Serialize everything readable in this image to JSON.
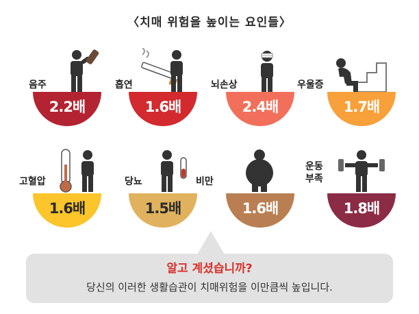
{
  "title": "〈치매 위험을 높이는 요인들〉",
  "factors": [
    {
      "label": "음주",
      "value": "2.2배",
      "color": "#b42331",
      "text_color": "#ffffff",
      "icon": "drinking-person-icon"
    },
    {
      "label": "흡연",
      "value": "1.6배",
      "color": "#d22a2e",
      "text_color": "#ffffff",
      "icon": "smoking-person-icon"
    },
    {
      "label": "뇌손상",
      "value": "2.4배",
      "color": "#f2705b",
      "text_color": "#ffffff",
      "icon": "head-injury-person-icon"
    },
    {
      "label": "우울증",
      "value": "1.7배",
      "color": "#f8a03a",
      "text_color": "#ffffff",
      "icon": "depressed-person-icon"
    },
    {
      "label": "고혈압",
      "value": "1.6배",
      "color": "#fbc52b",
      "text_color": "#2b2b2b",
      "icon": "thermometer-person-icon"
    },
    {
      "label": "당뇨",
      "value": "1.5배",
      "color": "#e0b25e",
      "text_color": "#2b2b2b",
      "icon": "test-tube-person-icon"
    },
    {
      "label": "비만",
      "value": "1.6배",
      "color": "#b97f52",
      "text_color": "#ffffff",
      "icon": "obese-person-icon"
    },
    {
      "label": "운동\n부족",
      "value": "1.8배",
      "color": "#8c2b45",
      "text_color": "#ffffff",
      "icon": "dumbbell-person-icon"
    }
  ],
  "callout": {
    "headline": "알고  계셨습니까?",
    "body": "당신의 이러한 생활습관이 치매위험을 이만큼씩 높입니다."
  }
}
